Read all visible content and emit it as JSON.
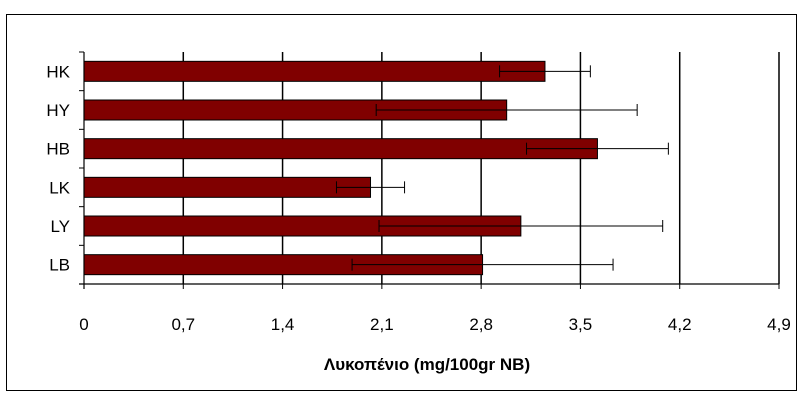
{
  "chart_data": {
    "type": "bar",
    "orientation": "horizontal",
    "categories": [
      "HK",
      "HY",
      "HB",
      "LK",
      "LY",
      "LB"
    ],
    "values": [
      3.25,
      2.98,
      3.62,
      2.02,
      3.08,
      2.81
    ],
    "error": [
      0.32,
      0.92,
      0.5,
      0.24,
      1.0,
      0.92
    ],
    "xlabel": "Λυκοπένιο (mg/100gr NB)",
    "ylabel": "",
    "xlim": [
      0,
      4.9
    ],
    "xticks": [
      "0",
      "0,7",
      "1,4",
      "2,1",
      "2,8",
      "3,5",
      "4,2",
      "4,9"
    ],
    "xtick_values": [
      0,
      0.7,
      1.4,
      2.1,
      2.8,
      3.5,
      4.2,
      4.9
    ],
    "grid": "vertical",
    "legend": "none",
    "bar_color": "#800000",
    "bar_edge_color": "#000000"
  }
}
